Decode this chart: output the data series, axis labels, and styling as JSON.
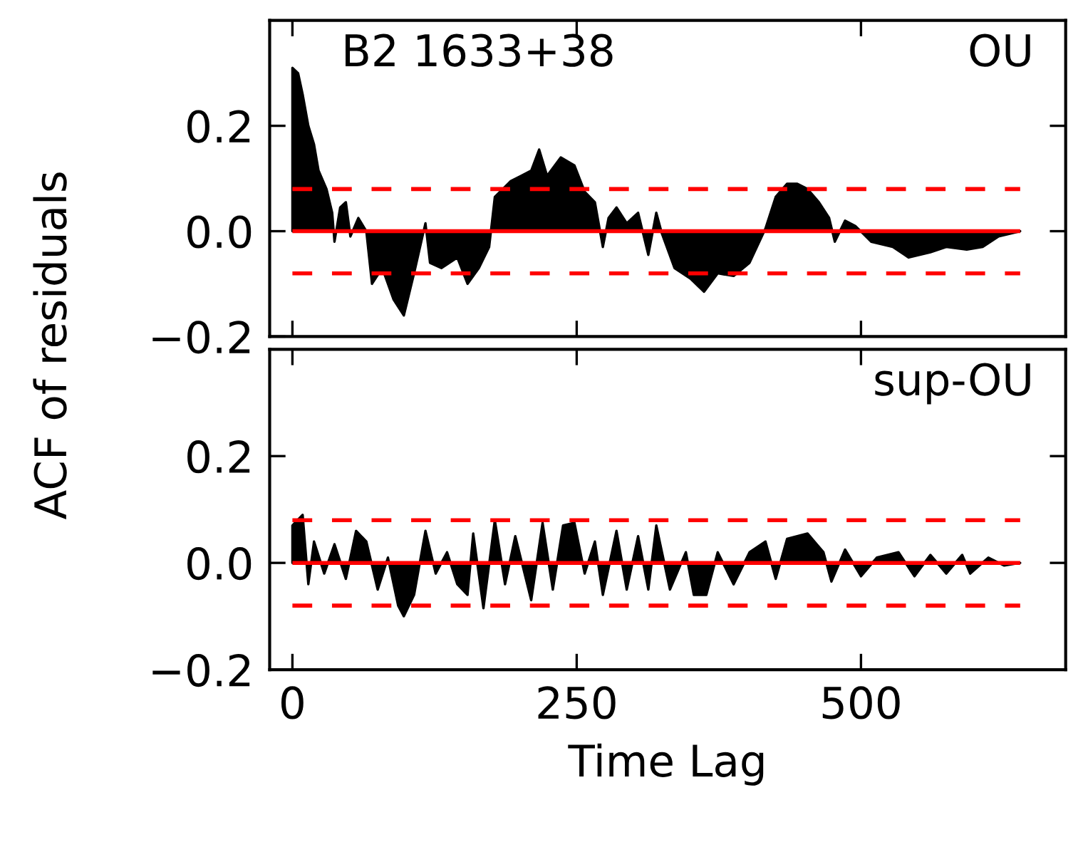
{
  "chart_data": [
    {
      "type": "area",
      "ylabel": "ACF of residuals",
      "annotations": [
        "B2 1633+38",
        "OU"
      ],
      "tick_labels": "y",
      "grid": false,
      "xlim": [
        -20,
        680
      ],
      "xticks": [
        0,
        250,
        500
      ],
      "ylim": [
        -0.2,
        0.4
      ],
      "yticks": [
        {
          "value": -0.2,
          "label": "−0.2"
        },
        {
          "value": 0.0,
          "label": "0.0"
        },
        {
          "value": 0.2,
          "label": "0.2"
        }
      ],
      "ref_lines": [
        {
          "axis": "y",
          "value": 0.0,
          "color": "#ff0000",
          "line_style": "solid"
        },
        {
          "axis": "y",
          "value": 0.08,
          "color": "#ff0000",
          "line_style": "dashed"
        },
        {
          "axis": "y",
          "value": -0.08,
          "color": "#ff0000",
          "line_style": "dashed"
        }
      ],
      "series": [
        {
          "color": "#000000",
          "x": [
            0,
            5,
            9,
            14,
            19,
            23,
            30,
            35,
            37,
            42,
            47,
            51,
            58,
            65,
            70,
            79,
            89,
            98,
            107,
            117,
            121,
            131,
            145,
            154,
            164,
            173,
            178,
            192,
            201,
            210,
            217,
            224,
            236,
            248,
            257,
            266,
            273,
            278,
            285,
            294,
            304,
            313,
            320,
            325,
            336,
            350,
            362,
            374,
            388,
            402,
            416,
            425,
            435,
            444,
            453,
            463,
            472,
            477,
            486,
            495,
            509,
            528,
            542,
            561,
            575,
            593,
            607,
            621,
            640
          ],
          "values": [
            0.31,
            0.3,
            0.26,
            0.2,
            0.165,
            0.115,
            0.08,
            0.035,
            -0.02,
            0.045,
            0.055,
            -0.01,
            0.025,
            0.0,
            -0.1,
            -0.07,
            -0.13,
            -0.16,
            -0.08,
            0.015,
            -0.06,
            -0.07,
            -0.05,
            -0.1,
            -0.07,
            -0.03,
            0.065,
            0.095,
            0.105,
            0.115,
            0.155,
            0.105,
            0.14,
            0.125,
            0.075,
            0.055,
            -0.03,
            0.025,
            0.045,
            0.015,
            0.035,
            -0.045,
            0.035,
            -0.005,
            -0.07,
            -0.09,
            -0.115,
            -0.08,
            -0.085,
            -0.06,
            0.005,
            0.065,
            0.09,
            0.09,
            0.08,
            0.055,
            0.025,
            -0.02,
            0.02,
            0.01,
            -0.02,
            -0.03,
            -0.05,
            -0.04,
            -0.03,
            -0.035,
            -0.03,
            -0.01,
            0.0
          ]
        }
      ]
    },
    {
      "type": "area",
      "xlabel": "Time Lag",
      "annotations": [
        "sup-OU"
      ],
      "grid": false,
      "xlim": [
        -20,
        680
      ],
      "xticks": [
        0,
        250,
        500
      ],
      "ylim": [
        -0.2,
        0.4
      ],
      "yticks": [
        {
          "value": -0.2,
          "label": "−0.2"
        },
        {
          "value": 0.0,
          "label": "0.0"
        },
        {
          "value": 0.2,
          "label": "0.2"
        }
      ],
      "ref_lines": [
        {
          "axis": "y",
          "value": 0.0,
          "color": "#ff0000",
          "line_style": "solid"
        },
        {
          "axis": "y",
          "value": 0.08,
          "color": "#ff0000",
          "line_style": "dashed"
        },
        {
          "axis": "y",
          "value": -0.08,
          "color": "#ff0000",
          "line_style": "dashed"
        }
      ],
      "series": [
        {
          "color": "#000000",
          "x": [
            0,
            9,
            14,
            19,
            28,
            37,
            47,
            56,
            65,
            75,
            84,
            93,
            98,
            107,
            117,
            126,
            136,
            145,
            154,
            159,
            168,
            178,
            187,
            196,
            210,
            220,
            229,
            238,
            248,
            257,
            266,
            273,
            285,
            294,
            304,
            313,
            320,
            332,
            346,
            353,
            364,
            374,
            388,
            402,
            416,
            425,
            435,
            453,
            467,
            474,
            486,
            500,
            514,
            533,
            547,
            561,
            575,
            589,
            596,
            612,
            626,
            640
          ],
          "values": [
            0.07,
            0.09,
            -0.04,
            0.04,
            -0.02,
            0.035,
            -0.03,
            0.06,
            0.04,
            -0.05,
            0.01,
            -0.08,
            -0.1,
            -0.06,
            0.06,
            -0.02,
            0.02,
            -0.04,
            -0.06,
            0.055,
            -0.085,
            0.08,
            -0.04,
            0.05,
            -0.07,
            0.075,
            -0.05,
            0.07,
            0.075,
            -0.02,
            0.04,
            -0.06,
            0.06,
            -0.05,
            0.05,
            -0.05,
            0.07,
            -0.05,
            0.02,
            -0.06,
            -0.06,
            0.02,
            -0.04,
            0.02,
            0.04,
            -0.03,
            0.045,
            0.055,
            0.02,
            -0.035,
            0.025,
            -0.025,
            0.01,
            0.02,
            -0.025,
            0.015,
            -0.02,
            0.015,
            -0.02,
            0.01,
            -0.005,
            0.0
          ]
        }
      ]
    }
  ]
}
